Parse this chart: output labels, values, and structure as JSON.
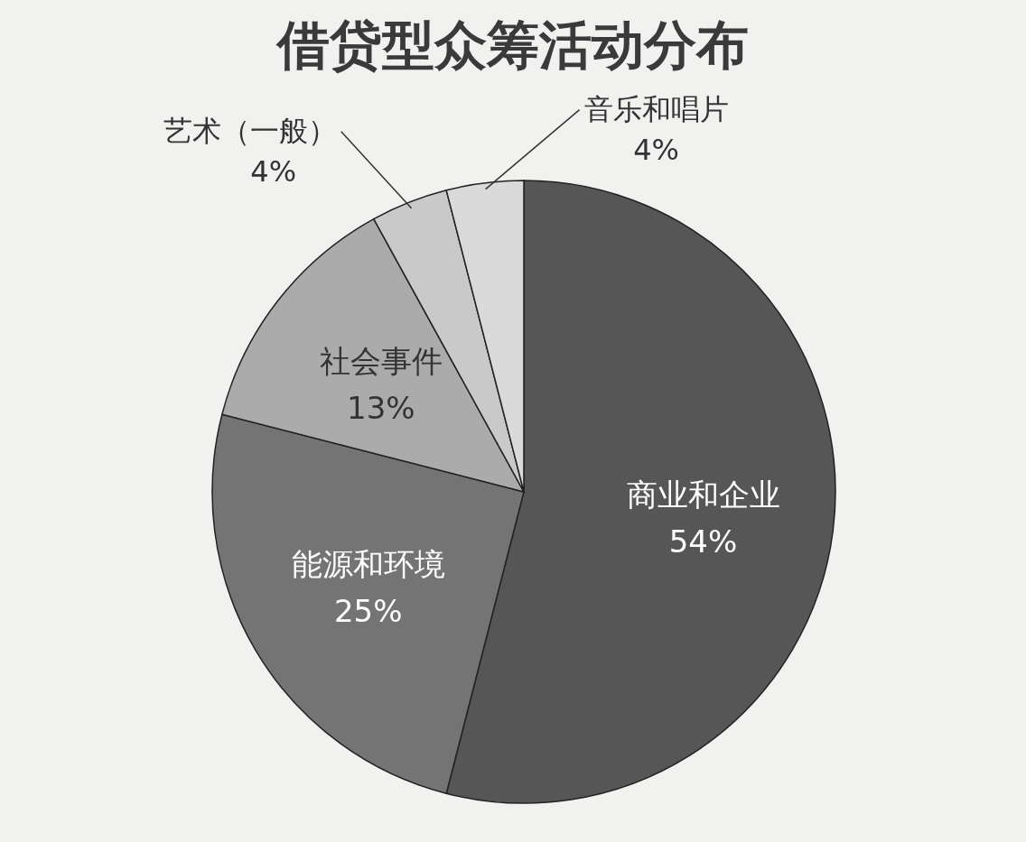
{
  "chart_data": {
    "type": "pie",
    "title": "借贷型众筹活动分布",
    "categories": [
      "商业和企业",
      "能源和环境",
      "社会事件",
      "艺术（一般）",
      "音乐和唱片"
    ],
    "values": [
      54,
      25,
      13,
      4,
      4
    ],
    "colors": [
      "#565656",
      "#747474",
      "#ababab",
      "#c9c9c9",
      "#dadada"
    ],
    "value_labels": [
      "54%",
      "25%",
      "13%",
      "4%",
      "4%"
    ]
  }
}
